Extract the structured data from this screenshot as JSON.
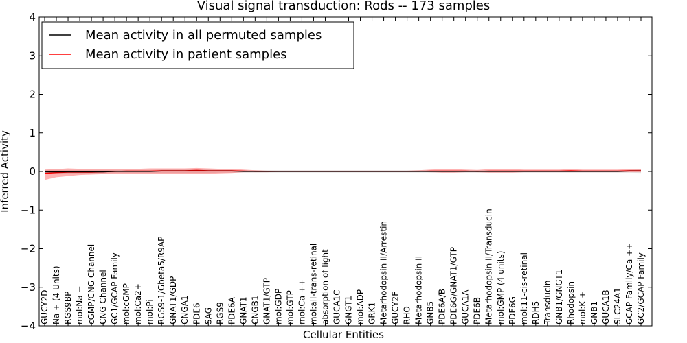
{
  "chart_data": {
    "type": "line",
    "title": "Visual signal transduction: Rods -- 173 samples",
    "xlabel": "Cellular Entities",
    "ylabel": "Inferred Activity",
    "ylim": [
      -4,
      4
    ],
    "yticks": [
      4,
      3,
      2,
      1,
      0,
      -1,
      -2,
      -3,
      -4
    ],
    "ytick_labels": [
      "4",
      "3",
      "2",
      "1",
      "0",
      "−1",
      "−2",
      "−3",
      "−4"
    ],
    "grid": false,
    "legend_position": "top-left",
    "categories": [
      "GUCY2D",
      "Na + (4 Units)",
      "RGS9BP",
      "mol:Na +",
      "cGMP/CNG Channel",
      "CNG Channel",
      "GC1/GCAP Family",
      "mol:cGMP",
      "mol:Ca2+",
      "mol:Pi",
      "RGS9-1/Gbeta5/R9AP",
      "GNAT1/GDP",
      "CNGA1",
      "PDE6",
      "SAG",
      "RGS9",
      "PDE6A",
      "GNAT1",
      "CNGB1",
      "GNAT1/GTP",
      "mol:GDP",
      "mol:GTP",
      "mol:Ca ++",
      "mol:all-trans-retinal",
      "absorption of light",
      "GUCA1C",
      "GNGT1",
      "mol:ADP",
      "GRK1",
      "Metarhodopsin II/Arrestin",
      "GUCY2F",
      "RHO",
      "Metarhodopsin II",
      "GNB5",
      "PDE6A/B",
      "PDE6G/GNAT1/GTP",
      "GUCA1A",
      "PDE6B",
      "Metarhodopsin II/Transducin",
      "mol:GMP (4 units)",
      "PDE6G",
      "mol:11-cis-retinal",
      "RDH5",
      "Transducin",
      "GNB1/GNGT1",
      "Rhodopsin",
      "mol:K +",
      "GNB1",
      "GUCA1B",
      "SLC24A1",
      "GCAP Family/Ca ++",
      "GC2/GCAP Family"
    ],
    "series": [
      {
        "name": "Mean activity in all permuted samples",
        "color": "#000000",
        "values": [
          -0.01,
          -0.01,
          -0.01,
          -0.01,
          -0.01,
          -0.01,
          0,
          0,
          0,
          0,
          0.01,
          0.01,
          0.01,
          0.01,
          0.01,
          0.01,
          0.01,
          0,
          0,
          0,
          0,
          0,
          0,
          0,
          0,
          0,
          0,
          0,
          0,
          0,
          0,
          0,
          0,
          0,
          0,
          0,
          0,
          0,
          0,
          0,
          0,
          0,
          0,
          0,
          0,
          0,
          0,
          0,
          0,
          0,
          0.01,
          0.01
        ],
        "band_low": [
          -0.06,
          -0.06,
          -0.05,
          -0.05,
          -0.05,
          -0.05,
          -0.04,
          -0.04,
          -0.04,
          -0.04,
          -0.04,
          -0.04,
          -0.04,
          -0.04,
          -0.04,
          -0.03,
          -0.03,
          -0.03,
          -0.03,
          -0.03,
          -0.03,
          -0.03,
          -0.03,
          -0.03,
          -0.03,
          -0.03,
          -0.03,
          -0.03,
          -0.03,
          -0.03,
          -0.03,
          -0.03,
          -0.03,
          -0.03,
          -0.03,
          -0.03,
          -0.03,
          -0.03,
          -0.03,
          -0.03,
          -0.03,
          -0.03,
          -0.03,
          -0.03,
          -0.03,
          -0.03,
          -0.03,
          -0.03,
          -0.03,
          -0.03,
          -0.03,
          -0.04
        ],
        "band_high": [
          0.04,
          0.04,
          0.04,
          0.04,
          0.04,
          0.04,
          0.04,
          0.04,
          0.04,
          0.04,
          0.05,
          0.05,
          0.05,
          0.05,
          0.05,
          0.04,
          0.04,
          0.03,
          0.03,
          0.03,
          0.03,
          0.03,
          0.03,
          0.03,
          0.03,
          0.03,
          0.03,
          0.03,
          0.03,
          0.03,
          0.03,
          0.03,
          0.03,
          0.03,
          0.03,
          0.03,
          0.03,
          0.03,
          0.03,
          0.03,
          0.03,
          0.03,
          0.03,
          0.03,
          0.03,
          0.03,
          0.03,
          0.03,
          0.03,
          0.03,
          0.04,
          0.05
        ]
      },
      {
        "name": "Mean activity in patient samples",
        "color": "#ff0000",
        "values": [
          -0.05,
          -0.03,
          -0.02,
          -0.02,
          -0.02,
          -0.01,
          0,
          0.01,
          0.01,
          0.01,
          0.02,
          0.02,
          0.02,
          0.03,
          0.02,
          0.02,
          0.02,
          0.01,
          0,
          0,
          0,
          0,
          0,
          0,
          0,
          0,
          0,
          0,
          0,
          0,
          0,
          0,
          0,
          0.01,
          0.01,
          0.01,
          0.01,
          0,
          0.01,
          0.01,
          0.01,
          0.01,
          0.01,
          0.01,
          0.01,
          0.02,
          0.01,
          0.01,
          0.01,
          0.01,
          0.02,
          0.02
        ],
        "band_low": [
          -0.22,
          -0.15,
          -0.12,
          -0.09,
          -0.08,
          -0.07,
          -0.07,
          -0.07,
          -0.06,
          -0.06,
          -0.06,
          -0.06,
          -0.06,
          -0.06,
          -0.06,
          -0.05,
          -0.04,
          -0.02,
          -0.02,
          -0.02,
          -0.01,
          -0.01,
          -0.01,
          -0.01,
          -0.01,
          -0.01,
          -0.01,
          -0.01,
          -0.01,
          -0.01,
          -0.01,
          -0.01,
          -0.01,
          -0.02,
          -0.03,
          -0.03,
          -0.02,
          -0.02,
          -0.03,
          -0.03,
          -0.03,
          -0.02,
          -0.02,
          -0.02,
          -0.02,
          -0.02,
          -0.02,
          -0.02,
          -0.02,
          -0.02,
          -0.02,
          -0.02
        ],
        "band_high": [
          0.05,
          0.06,
          0.08,
          0.07,
          0.07,
          0.06,
          0.06,
          0.07,
          0.07,
          0.08,
          0.08,
          0.08,
          0.08,
          0.09,
          0.08,
          0.07,
          0.07,
          0.05,
          0.03,
          0.02,
          0.02,
          0.02,
          0.02,
          0.02,
          0.02,
          0.02,
          0.02,
          0.02,
          0.02,
          0.02,
          0.02,
          0.02,
          0.03,
          0.05,
          0.06,
          0.06,
          0.05,
          0.04,
          0.06,
          0.06,
          0.06,
          0.05,
          0.05,
          0.05,
          0.05,
          0.06,
          0.05,
          0.05,
          0.05,
          0.05,
          0.06,
          0.06
        ]
      }
    ]
  }
}
